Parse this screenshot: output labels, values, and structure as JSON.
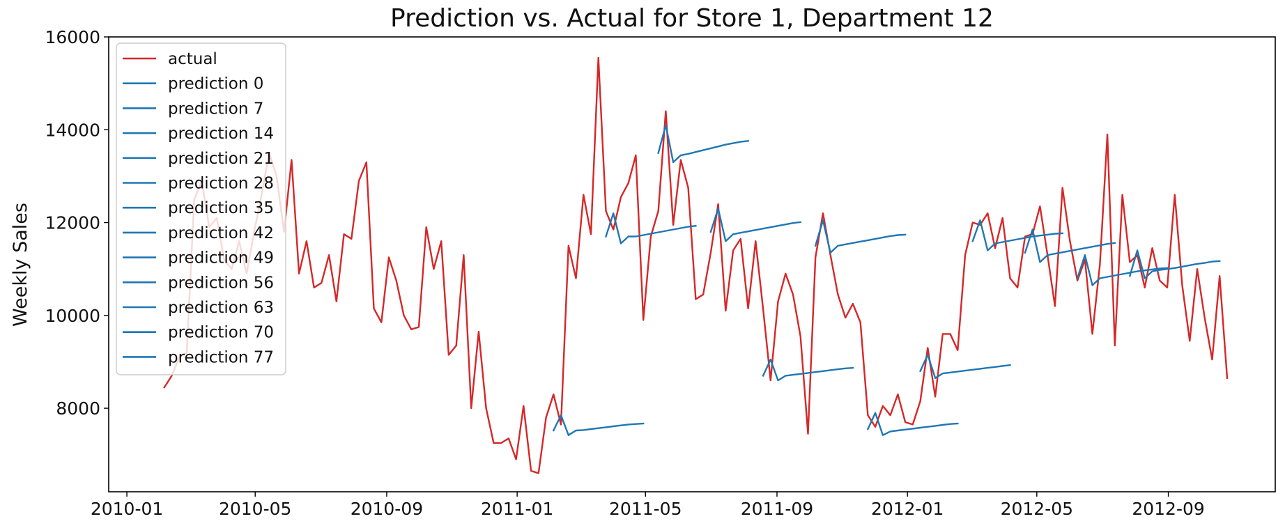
{
  "chart_data": {
    "type": "line",
    "title": "Prediction vs. Actual for Store 1, Department 12",
    "xlabel": "",
    "ylabel": "Weekly Sales",
    "x_axis": "date",
    "xlim": [
      "2009-12-15",
      "2012-12-10"
    ],
    "ylim": [
      6200,
      16000
    ],
    "grid": false,
    "legend_position": "upper-left",
    "x_ticks": [
      "2010-01",
      "2010-05",
      "2010-09",
      "2011-01",
      "2011-05",
      "2011-09",
      "2012-01",
      "2012-05",
      "2012-09"
    ],
    "y_ticks": [
      8000,
      10000,
      12000,
      14000,
      16000
    ],
    "colors": {
      "actual": "#d62728",
      "prediction": "#1f77b4"
    },
    "series": [
      {
        "name": "actual",
        "x": [
          "2010-02-05",
          "2010-02-12",
          "2010-02-19",
          "2010-02-26",
          "2010-03-05",
          "2010-03-12",
          "2010-03-19",
          "2010-03-26",
          "2010-04-02",
          "2010-04-09",
          "2010-04-16",
          "2010-04-23",
          "2010-04-30",
          "2010-05-07",
          "2010-05-14",
          "2010-05-21",
          "2010-05-28",
          "2010-06-04",
          "2010-06-11",
          "2010-06-18",
          "2010-06-25",
          "2010-07-02",
          "2010-07-09",
          "2010-07-16",
          "2010-07-23",
          "2010-07-30",
          "2010-08-06",
          "2010-08-13",
          "2010-08-20",
          "2010-08-27",
          "2010-09-03",
          "2010-09-10",
          "2010-09-17",
          "2010-09-24",
          "2010-10-01",
          "2010-10-08",
          "2010-10-15",
          "2010-10-22",
          "2010-10-29",
          "2010-11-05",
          "2010-11-12",
          "2010-11-19",
          "2010-11-26",
          "2010-12-03",
          "2010-12-10",
          "2010-12-17",
          "2010-12-24",
          "2010-12-31",
          "2011-01-07",
          "2011-01-14",
          "2011-01-21",
          "2011-01-28",
          "2011-02-04",
          "2011-02-11",
          "2011-02-18",
          "2011-02-25",
          "2011-03-04",
          "2011-03-11",
          "2011-03-18",
          "2011-03-25",
          "2011-04-01",
          "2011-04-08",
          "2011-04-15",
          "2011-04-22",
          "2011-04-29",
          "2011-05-06",
          "2011-05-13",
          "2011-05-20",
          "2011-05-27",
          "2011-06-03",
          "2011-06-10",
          "2011-06-17",
          "2011-06-24",
          "2011-07-01",
          "2011-07-08",
          "2011-07-15",
          "2011-07-22",
          "2011-07-29",
          "2011-08-05",
          "2011-08-12",
          "2011-08-19",
          "2011-08-26",
          "2011-09-02",
          "2011-09-09",
          "2011-09-16",
          "2011-09-23",
          "2011-09-30",
          "2011-10-07",
          "2011-10-14",
          "2011-10-21",
          "2011-10-28",
          "2011-11-04",
          "2011-11-11",
          "2011-11-18",
          "2011-11-25",
          "2011-12-02",
          "2011-12-09",
          "2011-12-16",
          "2011-12-23",
          "2011-12-30",
          "2012-01-06",
          "2012-01-13",
          "2012-01-20",
          "2012-01-27",
          "2012-02-03",
          "2012-02-10",
          "2012-02-17",
          "2012-02-24",
          "2012-03-02",
          "2012-03-09",
          "2012-03-16",
          "2012-03-23",
          "2012-03-30",
          "2012-04-06",
          "2012-04-13",
          "2012-04-20",
          "2012-04-27",
          "2012-05-04",
          "2012-05-11",
          "2012-05-18",
          "2012-05-25",
          "2012-06-01",
          "2012-06-08",
          "2012-06-15",
          "2012-06-22",
          "2012-06-29",
          "2012-07-06",
          "2012-07-13",
          "2012-07-20",
          "2012-07-27",
          "2012-08-03",
          "2012-08-10",
          "2012-08-17",
          "2012-08-24",
          "2012-08-31",
          "2012-09-07",
          "2012-09-14",
          "2012-09-21",
          "2012-09-28",
          "2012-10-05",
          "2012-10-12",
          "2012-10-19",
          "2012-10-26"
        ],
        "values": [
          8450,
          8700,
          9100,
          9200,
          12500,
          12900,
          11900,
          12100,
          11200,
          11000,
          11600,
          10900,
          11800,
          12600,
          13500,
          13000,
          11800,
          13350,
          10900,
          11600,
          10600,
          10700,
          11300,
          10300,
          11750,
          11650,
          12900,
          13300,
          10150,
          9850,
          11250,
          10750,
          10000,
          9700,
          9750,
          11900,
          11000,
          11600,
          9150,
          9350,
          11300,
          8000,
          9650,
          8000,
          7250,
          7250,
          7350,
          6900,
          8050,
          6650,
          6600,
          7800,
          8300,
          7650,
          11500,
          10800,
          12600,
          11750,
          15550,
          12250,
          11850,
          12550,
          12850,
          13450,
          9900,
          11700,
          12250,
          14400,
          11950,
          13350,
          12750,
          10350,
          10450,
          11350,
          12400,
          10100,
          11400,
          11650,
          10150,
          11600,
          10150,
          8600,
          10300,
          10900,
          10450,
          9550,
          7450,
          11250,
          12200,
          11300,
          10450,
          9950,
          10250,
          9850,
          7850,
          7600,
          8050,
          7850,
          8300,
          7700,
          7650,
          8150,
          9300,
          8250,
          9600,
          9600,
          9250,
          11300,
          12000,
          11950,
          12200,
          11450,
          12100,
          10800,
          10600,
          11700,
          11750,
          12350,
          11300,
          10200,
          12750,
          11600,
          10750,
          11200,
          9600,
          11100,
          13900,
          9350,
          12600,
          11150,
          11300,
          10600,
          11450,
          10750,
          10600,
          12600,
          10650,
          9450,
          11000,
          9950,
          9050,
          10850,
          8650
        ]
      },
      {
        "name": "prediction 0",
        "x": [
          "2011-02-04",
          "2011-02-11",
          "2011-02-18",
          "2011-02-25",
          "2011-03-04",
          "2011-03-11",
          "2011-03-18",
          "2011-03-25",
          "2011-04-01",
          "2011-04-08",
          "2011-04-15",
          "2011-04-22",
          "2011-04-29"
        ],
        "values": [
          7520,
          7850,
          7420,
          7520,
          7530,
          7550,
          7570,
          7590,
          7610,
          7630,
          7650,
          7660,
          7670
        ]
      },
      {
        "name": "prediction 7",
        "x": [
          "2011-03-25",
          "2011-04-01",
          "2011-04-08",
          "2011-04-15",
          "2011-04-22",
          "2011-04-29",
          "2011-05-06",
          "2011-05-13",
          "2011-05-20",
          "2011-05-27",
          "2011-06-03",
          "2011-06-10",
          "2011-06-17"
        ],
        "values": [
          11700,
          12200,
          11550,
          11700,
          11700,
          11730,
          11760,
          11790,
          11820,
          11850,
          11880,
          11910,
          11930
        ]
      },
      {
        "name": "prediction 14",
        "x": [
          "2011-05-13",
          "2011-05-20",
          "2011-05-27",
          "2011-06-03",
          "2011-06-10",
          "2011-06-17",
          "2011-06-24",
          "2011-07-01",
          "2011-07-08",
          "2011-07-15",
          "2011-07-22",
          "2011-07-29",
          "2011-08-05"
        ],
        "values": [
          13500,
          14100,
          13300,
          13450,
          13480,
          13520,
          13560,
          13600,
          13640,
          13680,
          13710,
          13740,
          13760
        ]
      },
      {
        "name": "prediction 21",
        "x": [
          "2011-07-01",
          "2011-07-08",
          "2011-07-15",
          "2011-07-22",
          "2011-07-29",
          "2011-08-05",
          "2011-08-12",
          "2011-08-19",
          "2011-08-26",
          "2011-09-02",
          "2011-09-09",
          "2011-09-16",
          "2011-09-23"
        ],
        "values": [
          11800,
          12300,
          11600,
          11750,
          11780,
          11810,
          11840,
          11870,
          11900,
          11930,
          11960,
          11990,
          12010
        ]
      },
      {
        "name": "prediction 28",
        "x": [
          "2011-08-19",
          "2011-08-26",
          "2011-09-02",
          "2011-09-09",
          "2011-09-16",
          "2011-09-23",
          "2011-09-30",
          "2011-10-07",
          "2011-10-14",
          "2011-10-21",
          "2011-10-28",
          "2011-11-04",
          "2011-11-11"
        ],
        "values": [
          8700,
          9050,
          8600,
          8700,
          8720,
          8740,
          8760,
          8780,
          8800,
          8820,
          8840,
          8860,
          8870
        ]
      },
      {
        "name": "prediction 35",
        "x": [
          "2011-10-07",
          "2011-10-14",
          "2011-10-21",
          "2011-10-28",
          "2011-11-04",
          "2011-11-11",
          "2011-11-18",
          "2011-11-25",
          "2011-12-02",
          "2011-12-09",
          "2011-12-16",
          "2011-12-23",
          "2011-12-30"
        ],
        "values": [
          11500,
          12050,
          11350,
          11500,
          11530,
          11560,
          11590,
          11620,
          11650,
          11680,
          11710,
          11730,
          11740
        ]
      },
      {
        "name": "prediction 42",
        "x": [
          "2011-11-25",
          "2011-12-02",
          "2011-12-09",
          "2011-12-16",
          "2011-12-23",
          "2011-12-30",
          "2012-01-06",
          "2012-01-13",
          "2012-01-20",
          "2012-01-27",
          "2012-02-03",
          "2012-02-10",
          "2012-02-17"
        ],
        "values": [
          7550,
          7900,
          7420,
          7500,
          7520,
          7540,
          7560,
          7580,
          7600,
          7620,
          7640,
          7660,
          7670
        ]
      },
      {
        "name": "prediction 49",
        "x": [
          "2012-01-13",
          "2012-01-20",
          "2012-01-27",
          "2012-02-03",
          "2012-02-10",
          "2012-02-17",
          "2012-02-24",
          "2012-03-02",
          "2012-03-09",
          "2012-03-16",
          "2012-03-23",
          "2012-03-30",
          "2012-04-06"
        ],
        "values": [
          8800,
          9150,
          8650,
          8750,
          8770,
          8790,
          8810,
          8830,
          8850,
          8870,
          8890,
          8910,
          8930
        ]
      },
      {
        "name": "prediction 56",
        "x": [
          "2012-03-02",
          "2012-03-09",
          "2012-03-16",
          "2012-03-23",
          "2012-03-30",
          "2012-04-06",
          "2012-04-13",
          "2012-04-20",
          "2012-04-27",
          "2012-05-04",
          "2012-05-11",
          "2012-05-18",
          "2012-05-25"
        ],
        "values": [
          11600,
          12050,
          11400,
          11550,
          11580,
          11610,
          11640,
          11670,
          11700,
          11720,
          11740,
          11760,
          11770
        ]
      },
      {
        "name": "prediction 63",
        "x": [
          "2012-04-20",
          "2012-04-27",
          "2012-05-04",
          "2012-05-11",
          "2012-05-18",
          "2012-05-25",
          "2012-06-01",
          "2012-06-08",
          "2012-06-15",
          "2012-06-22",
          "2012-06-29",
          "2012-07-06",
          "2012-07-13"
        ],
        "values": [
          11350,
          11850,
          11150,
          11300,
          11330,
          11360,
          11390,
          11420,
          11450,
          11480,
          11510,
          11540,
          11560
        ]
      },
      {
        "name": "prediction 70",
        "x": [
          "2012-06-08",
          "2012-06-15",
          "2012-06-22",
          "2012-06-29",
          "2012-07-06",
          "2012-07-13",
          "2012-07-20",
          "2012-07-27",
          "2012-08-03",
          "2012-08-10",
          "2012-08-17",
          "2012-08-24",
          "2012-08-31"
        ],
        "values": [
          10800,
          11300,
          10650,
          10800,
          10830,
          10860,
          10890,
          10920,
          10950,
          10970,
          10990,
          11010,
          11020
        ]
      },
      {
        "name": "prediction 77",
        "x": [
          "2012-07-27",
          "2012-08-03",
          "2012-08-10",
          "2012-08-17",
          "2012-08-24",
          "2012-08-31",
          "2012-09-07",
          "2012-09-14",
          "2012-09-21",
          "2012-09-28",
          "2012-10-05",
          "2012-10-12",
          "2012-10-19"
        ],
        "values": [
          10850,
          11400,
          10800,
          10950,
          10980,
          11000,
          11020,
          11050,
          11080,
          11110,
          11130,
          11160,
          11170
        ]
      }
    ]
  }
}
